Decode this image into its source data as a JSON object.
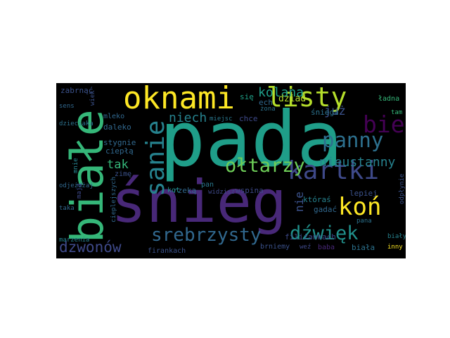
{
  "words": [
    {
      "text": "pada",
      "color": "#1f9e89"
    },
    {
      "text": "śnieg",
      "color": "#482878"
    },
    {
      "text": "białe",
      "color": "#35b779"
    },
    {
      "text": "oknami",
      "color": "#fde725"
    },
    {
      "text": "listy",
      "color": "#b5de2b"
    },
    {
      "text": "kartki",
      "color": "#3e4989"
    },
    {
      "text": "sanie",
      "color": "#26828e"
    },
    {
      "text": "srebrzysty",
      "color": "#31688e"
    },
    {
      "text": "koń",
      "color": "#fde725"
    },
    {
      "text": "bieg",
      "color": "#440154"
    },
    {
      "text": "panny",
      "color": "#2d708e"
    },
    {
      "text": "ołtarzy",
      "color": "#6ece58"
    },
    {
      "text": "dźwięk",
      "color": "#21918c"
    },
    {
      "text": "dzwonów",
      "color": "#3e4989"
    },
    {
      "text": "kolana",
      "color": "#1f9e89"
    },
    {
      "text": "niech",
      "color": "#26828e"
    },
    {
      "text": "nieustanny",
      "color": "#26828e"
    },
    {
      "text": "już",
      "color": "#3b528b"
    },
    {
      "text": "tak",
      "color": "#35b779"
    },
    {
      "text": "nie",
      "color": "#3b528b"
    },
    {
      "text": "dziad",
      "color": "#b5de2b"
    },
    {
      "text": "się",
      "color": "#1fa187"
    },
    {
      "text": "ech",
      "color": "#31688e"
    },
    {
      "text": "śniegu",
      "color": "#2c728e"
    },
    {
      "text": "ładna",
      "color": "#35b779"
    },
    {
      "text": "zabrnąć",
      "color": "#3b528b"
    },
    {
      "text": "wiek",
      "color": "#3b528b"
    },
    {
      "text": "sens",
      "color": "#31688e"
    },
    {
      "text": "mleko",
      "color": "#31688e"
    },
    {
      "text": "daleko",
      "color": "#31688e"
    },
    {
      "text": "dzieciaka",
      "color": "#2c728e"
    },
    {
      "text": "chce",
      "color": "#3e4989"
    },
    {
      "text": "miejsc",
      "color": "#2a788e"
    },
    {
      "text": "żona",
      "color": "#2c728e"
    },
    {
      "text": "tam",
      "color": "#35b779"
    },
    {
      "text": "stygnie",
      "color": "#31688e"
    },
    {
      "text": "ciepłą",
      "color": "#31688e"
    },
    {
      "text": "mnie",
      "color": "#26828e"
    },
    {
      "text": "zimę",
      "color": "#3b528b"
    },
    {
      "text": "rzeką",
      "color": "#31688e"
    },
    {
      "text": "pan",
      "color": "#2a788e"
    },
    {
      "text": "widzisz",
      "color": "#3e4989"
    },
    {
      "text": "wspina",
      "color": "#3e4989"
    },
    {
      "text": "kot",
      "color": "#21918c"
    },
    {
      "text": "któraś",
      "color": "#26828e"
    },
    {
      "text": "gadać",
      "color": "#31688e"
    },
    {
      "text": "lepiej",
      "color": "#3b528b"
    },
    {
      "text": "odpłynie",
      "color": "#3b528b"
    },
    {
      "text": "odjeżdżaj",
      "color": "#31688e"
    },
    {
      "text": "cieplejszych",
      "color": "#31688e"
    },
    {
      "text": "mają",
      "color": "#3e4989"
    },
    {
      "text": "taka",
      "color": "#31688e"
    },
    {
      "text": "filiżankach",
      "color": "#3e4989"
    },
    {
      "text": "pana",
      "color": "#2c728e"
    },
    {
      "text": "marzenia",
      "color": "#26828e"
    },
    {
      "text": "firankach",
      "color": "#3b528b"
    },
    {
      "text": "brniemy",
      "color": "#3b528b"
    },
    {
      "text": "weź",
      "color": "#3e4989"
    },
    {
      "text": "baba",
      "color": "#482878"
    },
    {
      "text": "biała",
      "color": "#2c728e"
    },
    {
      "text": "biały",
      "color": "#26828e"
    },
    {
      "text": "inny",
      "color": "#fde725"
    }
  ]
}
